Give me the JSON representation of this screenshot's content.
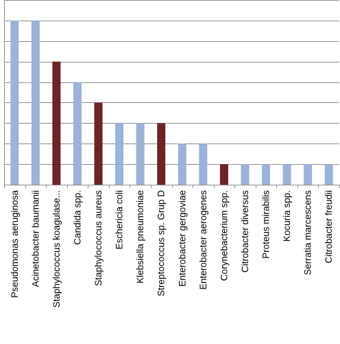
{
  "chart_data": {
    "type": "bar",
    "title": "",
    "xlabel": "",
    "ylabel": "",
    "ylim": [
      0,
      9
    ],
    "grid": true,
    "legend": "none",
    "colors": {
      "default": "#9bb2d9",
      "highlight": "#6b2326",
      "grid": "#8c8c8c"
    },
    "categories": [
      "Pseudomonas aeruginosa",
      "Acinetobacter baumanii",
      "Staphylococcus koagulase...",
      "Candida spp.",
      "Staphylococcus aureus",
      "Eschericia coli",
      "Klebsiella pneumoniae",
      "Streptococcus sp. Grup D",
      "Enterobacter gergoviae",
      "Enterobacter aerogenes",
      "Corynebacterium spp.",
      "Citrobacter diversus",
      "Proteus mirabilis",
      "Kocuria spp.",
      "Serratia marcescens",
      "Citrobacter freudii"
    ],
    "values": [
      8,
      8,
      6,
      5,
      4,
      3,
      3,
      3,
      2,
      2,
      1,
      1,
      1,
      1,
      1,
      1
    ],
    "highlighted": [
      false,
      false,
      true,
      false,
      true,
      false,
      false,
      true,
      false,
      false,
      true,
      false,
      false,
      false,
      false,
      false
    ]
  }
}
